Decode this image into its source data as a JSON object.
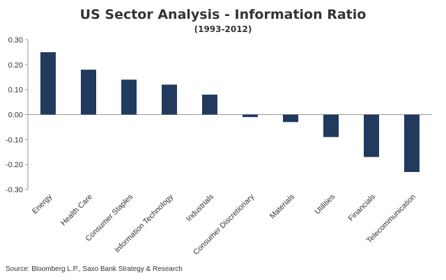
{
  "chart_data": {
    "type": "bar",
    "title": "US Sector Analysis - Information Ratio",
    "subtitle": "(1993-2012)",
    "xlabel": "",
    "ylabel": "",
    "categories": [
      "Energy",
      "Health Care",
      "Consumer Staples",
      "Information Technology",
      "Industrials",
      "Consumer Discretionary",
      "Materials",
      "Utilities",
      "Financials",
      "Telecommunication"
    ],
    "values": [
      0.25,
      0.18,
      0.14,
      0.12,
      0.08,
      -0.01,
      -0.03,
      -0.09,
      -0.17,
      -0.23
    ],
    "ylim": [
      -0.3,
      0.3
    ],
    "yticks": [
      "0.30",
      "0.20",
      "0.10",
      "0.00",
      "-0.10",
      "-0.20",
      "-0.30"
    ],
    "grid": false,
    "bar_color": "#213a5e",
    "source": "Source: Bloomberg L.P., Saxo Bank Strategy & Research"
  }
}
